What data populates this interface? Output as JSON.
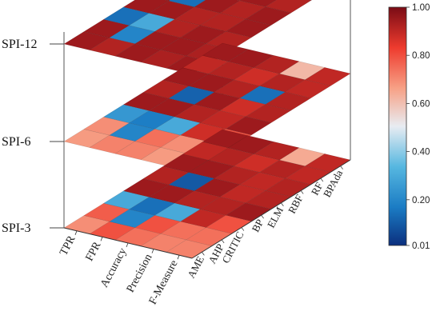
{
  "chart_data": {
    "type": "heatmap",
    "title": "",
    "levels": [
      "SPI-3",
      "SPI-6",
      "SPI-12"
    ],
    "x_categories": [
      "TPR",
      "FPR",
      "Accuracy",
      "Precision",
      "F-Measure"
    ],
    "y_categories": [
      "AME",
      "AHP",
      "CRITIC",
      "BP",
      "ELM",
      "RBF",
      "RF",
      "BPAda"
    ],
    "colorbar": {
      "min": 0.01,
      "max": 1.0,
      "ticks": [
        "0.01",
        "0.20",
        "0.40",
        "0.60",
        "0.80",
        "1.00"
      ],
      "tick_values": [
        0.01,
        0.2,
        0.4,
        0.6,
        0.8,
        1.0
      ],
      "colors": [
        "#0b2f7e",
        "#1b7cc4",
        "#56b7e0",
        "#e8ecf2",
        "#f7a186",
        "#ee3b2e",
        "#7a0c15"
      ]
    },
    "values": {
      "SPI-3": [
        [
          0.7,
          0.8,
          0.75,
          0.72,
          0.72
        ],
        [
          0.78,
          0.2,
          0.8,
          0.75,
          0.75
        ],
        [
          0.3,
          0.15,
          0.3,
          0.9,
          0.8
        ],
        [
          0.95,
          0.95,
          0.92,
          0.92,
          0.95
        ],
        [
          0.92,
          0.1,
          0.95,
          0.9,
          0.92
        ],
        [
          0.95,
          0.95,
          0.92,
          0.9,
          0.92
        ],
        [
          0.9,
          0.92,
          0.88,
          0.92,
          0.9
        ],
        [
          0.95,
          0.95,
          0.92,
          0.65,
          0.9
        ]
      ],
      "SPI-6": [
        [
          0.68,
          0.72,
          0.72,
          0.68,
          0.65
        ],
        [
          0.7,
          0.2,
          0.75,
          0.7,
          0.68
        ],
        [
          0.25,
          0.18,
          0.3,
          0.88,
          0.8
        ],
        [
          0.95,
          0.95,
          0.92,
          0.9,
          0.95
        ],
        [
          0.92,
          0.12,
          0.95,
          0.88,
          0.92
        ],
        [
          0.95,
          0.95,
          0.92,
          0.15,
          0.92
        ],
        [
          0.9,
          0.92,
          0.88,
          0.92,
          0.9
        ],
        [
          0.95,
          0.95,
          0.92,
          0.62,
          0.9
        ]
      ],
      "SPI-12": [
        [
          0.95,
          0.92,
          0.95,
          0.93,
          0.95
        ],
        [
          0.95,
          0.2,
          0.95,
          0.95,
          0.93
        ],
        [
          0.15,
          0.3,
          0.92,
          0.95,
          0.92
        ],
        [
          0.95,
          0.95,
          0.92,
          0.92,
          0.95
        ],
        [
          0.95,
          0.15,
          0.95,
          0.92,
          0.95
        ],
        [
          0.95,
          0.95,
          0.92,
          0.95,
          0.92
        ],
        [
          0.92,
          0.95,
          0.95,
          0.92,
          0.95
        ],
        [
          0.95,
          0.95,
          0.92,
          0.92,
          0.95
        ]
      ]
    },
    "grid": true,
    "legend": "right"
  }
}
